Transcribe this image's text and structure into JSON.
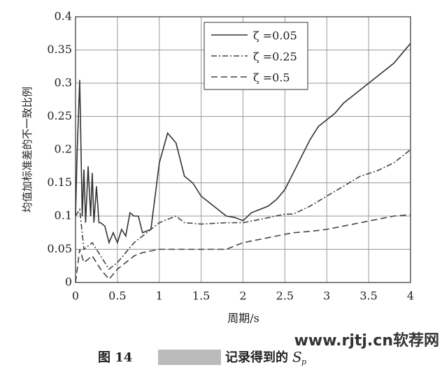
{
  "chart_data": {
    "type": "line",
    "ylabel": "均值加标准差的不一致比例",
    "xlabel": "周期/s",
    "xlim": [
      0,
      4
    ],
    "xticks": [
      0,
      0.5,
      1,
      1.5,
      2,
      2.5,
      3,
      3.5,
      4
    ],
    "ylim": [
      0,
      0.4
    ],
    "yticks": [
      0,
      0.05,
      0.1,
      0.15,
      0.2,
      0.25,
      0.3,
      0.35,
      0.4
    ],
    "grid": true,
    "series": [
      {
        "name": "ζ =0.05",
        "color": "#333333",
        "dash": "none",
        "x": [
          0,
          0.02,
          0.05,
          0.08,
          0.1,
          0.12,
          0.15,
          0.18,
          0.2,
          0.22,
          0.25,
          0.28,
          0.3,
          0.35,
          0.4,
          0.45,
          0.5,
          0.55,
          0.6,
          0.65,
          0.7,
          0.75,
          0.8,
          0.9,
          1.0,
          1.1,
          1.2,
          1.3,
          1.4,
          1.5,
          1.6,
          1.7,
          1.8,
          1.9,
          2.0,
          2.1,
          2.2,
          2.3,
          2.4,
          2.5,
          2.6,
          2.7,
          2.8,
          2.9,
          3.0,
          3.1,
          3.2,
          3.3,
          3.4,
          3.5,
          3.6,
          3.7,
          3.8,
          3.9,
          4.0
        ],
        "values": [
          0.1,
          0.2,
          0.305,
          0.1,
          0.17,
          0.09,
          0.175,
          0.1,
          0.165,
          0.09,
          0.145,
          0.09,
          0.09,
          0.085,
          0.06,
          0.075,
          0.06,
          0.08,
          0.07,
          0.105,
          0.1,
          0.1,
          0.075,
          0.08,
          0.18,
          0.225,
          0.21,
          0.16,
          0.15,
          0.13,
          0.12,
          0.11,
          0.1,
          0.098,
          0.093,
          0.105,
          0.11,
          0.115,
          0.125,
          0.14,
          0.165,
          0.19,
          0.215,
          0.235,
          0.245,
          0.255,
          0.27,
          0.28,
          0.29,
          0.3,
          0.31,
          0.32,
          0.33,
          0.345,
          0.36
        ]
      },
      {
        "name": "ζ =0.25",
        "color": "#444444",
        "dash": "8 3 2 3",
        "x": [
          0,
          0.05,
          0.1,
          0.2,
          0.3,
          0.4,
          0.5,
          0.6,
          0.7,
          0.8,
          0.9,
          1.0,
          1.2,
          1.3,
          1.5,
          1.8,
          2.0,
          2.2,
          2.5,
          2.6,
          2.8,
          3.0,
          3.2,
          3.4,
          3.6,
          3.8,
          4.0
        ],
        "values": [
          0.1,
          0.11,
          0.05,
          0.06,
          0.04,
          0.02,
          0.03,
          0.045,
          0.06,
          0.07,
          0.08,
          0.09,
          0.1,
          0.09,
          0.088,
          0.09,
          0.09,
          0.095,
          0.103,
          0.103,
          0.115,
          0.13,
          0.145,
          0.16,
          0.168,
          0.18,
          0.2
        ]
      },
      {
        "name": "ζ =0.5",
        "color": "#444444",
        "dash": "9 5",
        "x": [
          0,
          0.05,
          0.1,
          0.2,
          0.3,
          0.4,
          0.5,
          0.6,
          0.7,
          0.8,
          1.0,
          1.5,
          1.8,
          2.0,
          2.2,
          2.4,
          2.6,
          2.8,
          3.0,
          3.2,
          3.4,
          3.6,
          3.8,
          4.0
        ],
        "values": [
          0,
          0.05,
          0.03,
          0.04,
          0.02,
          0.005,
          0.02,
          0.03,
          0.04,
          0.045,
          0.05,
          0.05,
          0.05,
          0.06,
          0.065,
          0.07,
          0.075,
          0.077,
          0.08,
          0.085,
          0.09,
          0.095,
          0.1,
          0.102
        ]
      }
    ]
  },
  "figure_caption": {
    "label": "图 14",
    "text": "记录得到的",
    "symbol": "S",
    "subscript": "p"
  },
  "watermark": "www.rjtj.cn软荐网"
}
